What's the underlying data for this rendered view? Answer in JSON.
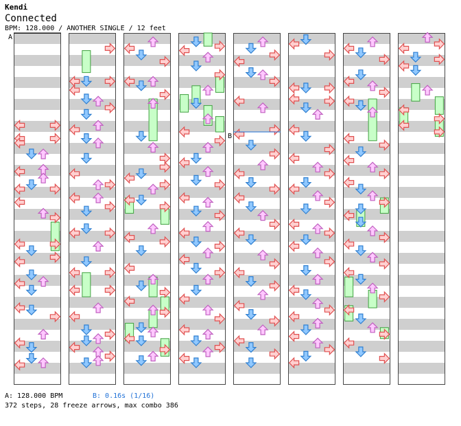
{
  "song": {
    "artist": "Kendi",
    "title": "Connected",
    "info": "BPM: 128.000 / ANOTHER SINGLE / 12 feet"
  },
  "markers": {
    "a_label": "A",
    "b_label": "B"
  },
  "footer": {
    "bpm_change": "A: 128.000 BPM",
    "stop": "B: 0.16s (1/16)",
    "stats": "372 steps, 28 freeze arrows, max combo 386"
  },
  "colors": {
    "stripe": "#cfcfcf",
    "left_right_fill": "#ffd0d0",
    "left_right_stroke": "#e05050",
    "down_fill": "#90c8ff",
    "down_stroke": "#2f7fd0",
    "up_fill": "#ffc8ff",
    "up_stroke": "#c060c0",
    "freeze_fill": "#c8ffc8",
    "freeze_stroke": "#40a040",
    "stop_line": "#1d6fd6"
  },
  "chart_data": {
    "type": "step-chart",
    "lanes": [
      "left",
      "down",
      "up",
      "right"
    ],
    "columns": 8,
    "measures_per_column": 8,
    "notes": [
      [
        [
          "left",
          2.1
        ],
        [
          "right",
          2.1
        ],
        [
          "left",
          2.4
        ],
        [
          "right",
          2.4
        ],
        [
          "left",
          2.5
        ],
        [
          "up",
          2.75
        ],
        [
          "down",
          2.75
        ],
        [
          "up",
          3.1
        ],
        [
          "left",
          3.15
        ],
        [
          "up",
          3.3
        ],
        [
          "down",
          3.45
        ],
        [
          "right",
          3.55
        ],
        [
          "left",
          3.55
        ],
        [
          "left",
          3.85
        ],
        [
          "up",
          4.1
        ],
        [
          "right",
          4.2
        ],
        [
          "right",
          4.8
        ],
        [
          "left",
          4.8
        ],
        [
          "down",
          4.95
        ],
        [
          "right",
          5.1
        ],
        [
          "left",
          5.2
        ],
        [
          "down",
          5.5
        ],
        [
          "up",
          5.65
        ],
        [
          "left",
          5.7
        ],
        [
          "down",
          5.85
        ],
        [
          "left",
          6.25
        ],
        [
          "down",
          6.3
        ],
        [
          "right",
          6.45
        ],
        [
          "up",
          6.85
        ],
        [
          "left",
          7.05
        ],
        [
          "down",
          7.15
        ],
        [
          "down",
          7.4
        ],
        [
          "up",
          7.5
        ],
        [
          "left",
          7.55
        ]
      ],
      [
        [
          "right",
          0.35
        ],
        [
          "left",
          1.1
        ],
        [
          "down",
          1.1
        ],
        [
          "right",
          1.1
        ],
        [
          "left",
          1.3
        ],
        [
          "down",
          1.5
        ],
        [
          "up",
          1.55
        ],
        [
          "right",
          1.7
        ],
        [
          "down",
          1.85
        ],
        [
          "up",
          2.1
        ],
        [
          "left",
          2.2
        ],
        [
          "down",
          2.4
        ],
        [
          "up",
          2.5
        ],
        [
          "down",
          2.85
        ],
        [
          "left",
          3.2
        ],
        [
          "up",
          3.45
        ],
        [
          "right",
          3.45
        ],
        [
          "left",
          3.75
        ],
        [
          "up",
          3.75
        ],
        [
          "right",
          3.95
        ],
        [
          "down",
          4.05
        ],
        [
          "down",
          4.45
        ],
        [
          "left",
          4.55
        ],
        [
          "right",
          4.55
        ],
        [
          "up",
          4.85
        ],
        [
          "down",
          5.2
        ],
        [
          "left",
          5.45
        ],
        [
          "right",
          5.45
        ],
        [
          "left",
          5.85
        ],
        [
          "right",
          5.85
        ],
        [
          "up",
          6.25
        ],
        [
          "left",
          6.45
        ],
        [
          "right",
          6.85
        ],
        [
          "down",
          6.75
        ],
        [
          "up",
          6.95
        ],
        [
          "down",
          7.0
        ],
        [
          "left",
          7.15
        ],
        [
          "up",
          7.25
        ],
        [
          "right",
          7.35
        ],
        [
          "up",
          7.45
        ],
        [
          "down",
          7.5
        ]
      ],
      [
        [
          "up",
          0.2
        ],
        [
          "left",
          0.35
        ],
        [
          "down",
          0.5
        ],
        [
          "right",
          0.65
        ],
        [
          "left",
          1.1
        ],
        [
          "up",
          1.1
        ],
        [
          "down",
          1.2
        ],
        [
          "right",
          1.4
        ],
        [
          "up",
          1.6
        ],
        [
          "down",
          2.35
        ],
        [
          "up",
          2.6
        ],
        [
          "right",
          2.85
        ],
        [
          "right",
          3.05
        ],
        [
          "down",
          3.2
        ],
        [
          "left",
          3.3
        ],
        [
          "right",
          3.45
        ],
        [
          "up",
          3.55
        ],
        [
          "left",
          3.8
        ],
        [
          "down",
          3.8
        ],
        [
          "right",
          3.95
        ],
        [
          "up",
          4.45
        ],
        [
          "left",
          4.65
        ],
        [
          "right",
          4.75
        ],
        [
          "down",
          4.95
        ],
        [
          "left",
          5.35
        ],
        [
          "up",
          5.6
        ],
        [
          "down",
          5.75
        ],
        [
          "right",
          5.9
        ],
        [
          "left",
          6.1
        ],
        [
          "up",
          6.3
        ],
        [
          "right",
          6.35
        ],
        [
          "down",
          6.7
        ],
        [
          "up",
          6.8
        ],
        [
          "left",
          6.95
        ],
        [
          "down",
          7.0
        ],
        [
          "right",
          7.2
        ],
        [
          "up",
          7.35
        ],
        [
          "down",
          7.45
        ]
      ],
      [
        [
          "down",
          0.2
        ],
        [
          "right",
          0.3
        ],
        [
          "left",
          0.4
        ],
        [
          "up",
          0.55
        ],
        [
          "down",
          0.75
        ],
        [
          "right",
          0.95
        ],
        [
          "up",
          1.3
        ],
        [
          "down",
          1.6
        ],
        [
          "up",
          1.95
        ],
        [
          "left",
          2.25
        ],
        [
          "right",
          2.45
        ],
        [
          "up",
          2.6
        ],
        [
          "down",
          2.85
        ],
        [
          "left",
          2.95
        ],
        [
          "up",
          3.15
        ],
        [
          "down",
          3.35
        ],
        [
          "right",
          3.45
        ],
        [
          "left",
          3.75
        ],
        [
          "up",
          3.85
        ],
        [
          "down",
          4.05
        ],
        [
          "right",
          4.15
        ],
        [
          "up",
          4.4
        ],
        [
          "left",
          4.55
        ],
        [
          "down",
          4.75
        ],
        [
          "right",
          4.85
        ],
        [
          "up",
          5.0
        ],
        [
          "left",
          5.15
        ],
        [
          "down",
          5.35
        ],
        [
          "right",
          5.45
        ],
        [
          "up",
          5.6
        ],
        [
          "down",
          5.85
        ],
        [
          "left",
          6.05
        ],
        [
          "up",
          6.3
        ],
        [
          "right",
          6.5
        ],
        [
          "left",
          6.75
        ],
        [
          "up",
          6.85
        ],
        [
          "down",
          7.0
        ],
        [
          "right",
          7.15
        ],
        [
          "up",
          7.25
        ],
        [
          "left",
          7.4
        ],
        [
          "down",
          7.5
        ]
      ],
      [
        [
          "up",
          0.2
        ],
        [
          "down",
          0.35
        ],
        [
          "right",
          0.5
        ],
        [
          "left",
          0.65
        ],
        [
          "down",
          0.9
        ],
        [
          "up",
          0.95
        ],
        [
          "right",
          1.1
        ],
        [
          "left",
          1.55
        ],
        [
          "up",
          1.7
        ],
        [
          "right",
          2.2
        ],
        [
          "left",
          2.3
        ],
        [
          "down",
          2.55
        ],
        [
          "right",
          2.75
        ],
        [
          "up",
          3.0
        ],
        [
          "left",
          3.2
        ],
        [
          "down",
          3.4
        ],
        [
          "right",
          3.55
        ],
        [
          "left",
          3.75
        ],
        [
          "down",
          3.95
        ],
        [
          "up",
          4.15
        ],
        [
          "right",
          4.35
        ],
        [
          "left",
          4.55
        ],
        [
          "down",
          4.7
        ],
        [
          "up",
          5.05
        ],
        [
          "right",
          5.25
        ],
        [
          "left",
          5.45
        ],
        [
          "down",
          5.65
        ],
        [
          "right",
          5.75
        ],
        [
          "up",
          5.95
        ],
        [
          "left",
          6.2
        ],
        [
          "down",
          6.4
        ],
        [
          "right",
          6.55
        ],
        [
          "up",
          6.75
        ],
        [
          "left",
          7.0
        ],
        [
          "down",
          7.15
        ],
        [
          "right",
          7.3
        ],
        [
          "down",
          7.5
        ]
      ],
      [
        [
          "left",
          0.25
        ],
        [
          "down",
          0.15
        ],
        [
          "right",
          0.5
        ],
        [
          "left",
          1.25
        ],
        [
          "down",
          1.25
        ],
        [
          "right",
          1.25
        ],
        [
          "left",
          1.5
        ],
        [
          "right",
          1.55
        ],
        [
          "down",
          1.7
        ],
        [
          "up",
          1.85
        ],
        [
          "left",
          2.2
        ],
        [
          "down",
          2.35
        ],
        [
          "right",
          2.65
        ],
        [
          "left",
          2.85
        ],
        [
          "up",
          3.05
        ],
        [
          "right",
          3.2
        ],
        [
          "down",
          3.4
        ],
        [
          "left",
          3.55
        ],
        [
          "up",
          3.7
        ],
        [
          "right",
          3.85
        ],
        [
          "down",
          4.0
        ],
        [
          "left",
          4.35
        ],
        [
          "up",
          4.45
        ],
        [
          "right",
          4.55
        ],
        [
          "down",
          4.7
        ],
        [
          "left",
          4.85
        ],
        [
          "up",
          5.0
        ],
        [
          "right",
          5.2
        ],
        [
          "down",
          5.4
        ],
        [
          "up",
          5.6
        ],
        [
          "left",
          5.85
        ],
        [
          "down",
          5.95
        ],
        [
          "up",
          6.15
        ],
        [
          "right",
          6.3
        ],
        [
          "left",
          6.45
        ],
        [
          "up",
          6.6
        ],
        [
          "down",
          6.75
        ],
        [
          "left",
          6.9
        ],
        [
          "up",
          7.05
        ],
        [
          "right",
          7.2
        ],
        [
          "down",
          7.35
        ],
        [
          "left",
          7.5
        ]
      ],
      [
        [
          "up",
          0.2
        ],
        [
          "left",
          0.35
        ],
        [
          "down",
          0.45
        ],
        [
          "right",
          0.6
        ],
        [
          "down",
          0.95
        ],
        [
          "left",
          1.1
        ],
        [
          "up",
          1.2
        ],
        [
          "right",
          1.35
        ],
        [
          "left",
          1.55
        ],
        [
          "down",
          1.65
        ],
        [
          "up",
          1.8
        ],
        [
          "left",
          2.4
        ],
        [
          "right",
          2.55
        ],
        [
          "down",
          2.7
        ],
        [
          "left",
          2.9
        ],
        [
          "up",
          3.05
        ],
        [
          "right",
          3.2
        ],
        [
          "left",
          3.4
        ],
        [
          "down",
          3.55
        ],
        [
          "up",
          3.7
        ],
        [
          "right",
          3.85
        ],
        [
          "down",
          4.0
        ],
        [
          "left",
          4.15
        ],
        [
          "down",
          4.3
        ],
        [
          "up",
          4.5
        ],
        [
          "right",
          4.65
        ],
        [
          "left",
          4.8
        ],
        [
          "down",
          4.95
        ],
        [
          "up",
          5.1
        ],
        [
          "right",
          5.25
        ],
        [
          "left",
          5.45
        ],
        [
          "down",
          5.6
        ],
        [
          "up",
          5.8
        ],
        [
          "right",
          6.0
        ],
        [
          "left",
          6.3
        ],
        [
          "down",
          6.5
        ],
        [
          "up",
          6.7
        ],
        [
          "right",
          6.85
        ],
        [
          "left",
          7.05
        ],
        [
          "down",
          7.25
        ],
        [
          "right",
          7.4
        ]
      ],
      [
        [
          "up",
          0.1
        ],
        [
          "left",
          0.35
        ],
        [
          "right",
          0.25
        ],
        [
          "down",
          0.55
        ],
        [
          "left",
          0.75
        ],
        [
          "right",
          0.6
        ],
        [
          "down",
          0.85
        ],
        [
          "up",
          1.3
        ],
        [
          "left",
          1.75
        ],
        [
          "right",
          1.95
        ],
        [
          "left",
          2.1
        ],
        [
          "right",
          2.25
        ]
      ]
    ],
    "freezes": [
      [
        [
          "right",
          4.3,
          4.95
        ]
      ],
      [
        [
          "down",
          0.4,
          0.9
        ],
        [
          "down",
          5.45,
          6.0
        ]
      ],
      [
        [
          "up",
          1.5,
          2.45
        ],
        [
          "left",
          3.75,
          4.1
        ],
        [
          "right",
          4.0,
          4.35
        ],
        [
          "up",
          5.55,
          6.0
        ],
        [
          "right",
          6.0,
          6.35
        ],
        [
          "up",
          6.3,
          6.7
        ],
        [
          "left",
          6.6,
          7.0
        ],
        [
          "right",
          6.95,
          7.35
        ]
      ],
      [
        [
          "up",
          0.0,
          0.3
        ],
        [
          "left",
          1.4,
          1.8
        ],
        [
          "down",
          1.2,
          1.6
        ],
        [
          "right",
          1.0,
          1.35
        ],
        [
          "up",
          1.65,
          2.1
        ],
        [
          "right",
          1.9,
          2.25
        ]
      ],
      [],
      [],
      [
        [
          "up",
          1.5,
          2.45
        ],
        [
          "down",
          4.0,
          4.4
        ],
        [
          "right",
          3.75,
          4.1
        ],
        [
          "left",
          5.55,
          6.0
        ],
        [
          "up",
          5.85,
          6.25
        ],
        [
          "left",
          6.2,
          6.55
        ],
        [
          "right",
          6.7,
          6.95
        ]
      ],
      [
        [
          "down",
          1.15,
          1.55
        ],
        [
          "right",
          1.45,
          1.85
        ],
        [
          "left",
          1.7,
          2.1
        ],
        [
          "right",
          1.95,
          2.35
        ]
      ]
    ],
    "bpm_change_at": {
      "column": 0,
      "measure": 0.0
    },
    "stop_at": {
      "column": 4,
      "measure": 2.25
    }
  }
}
